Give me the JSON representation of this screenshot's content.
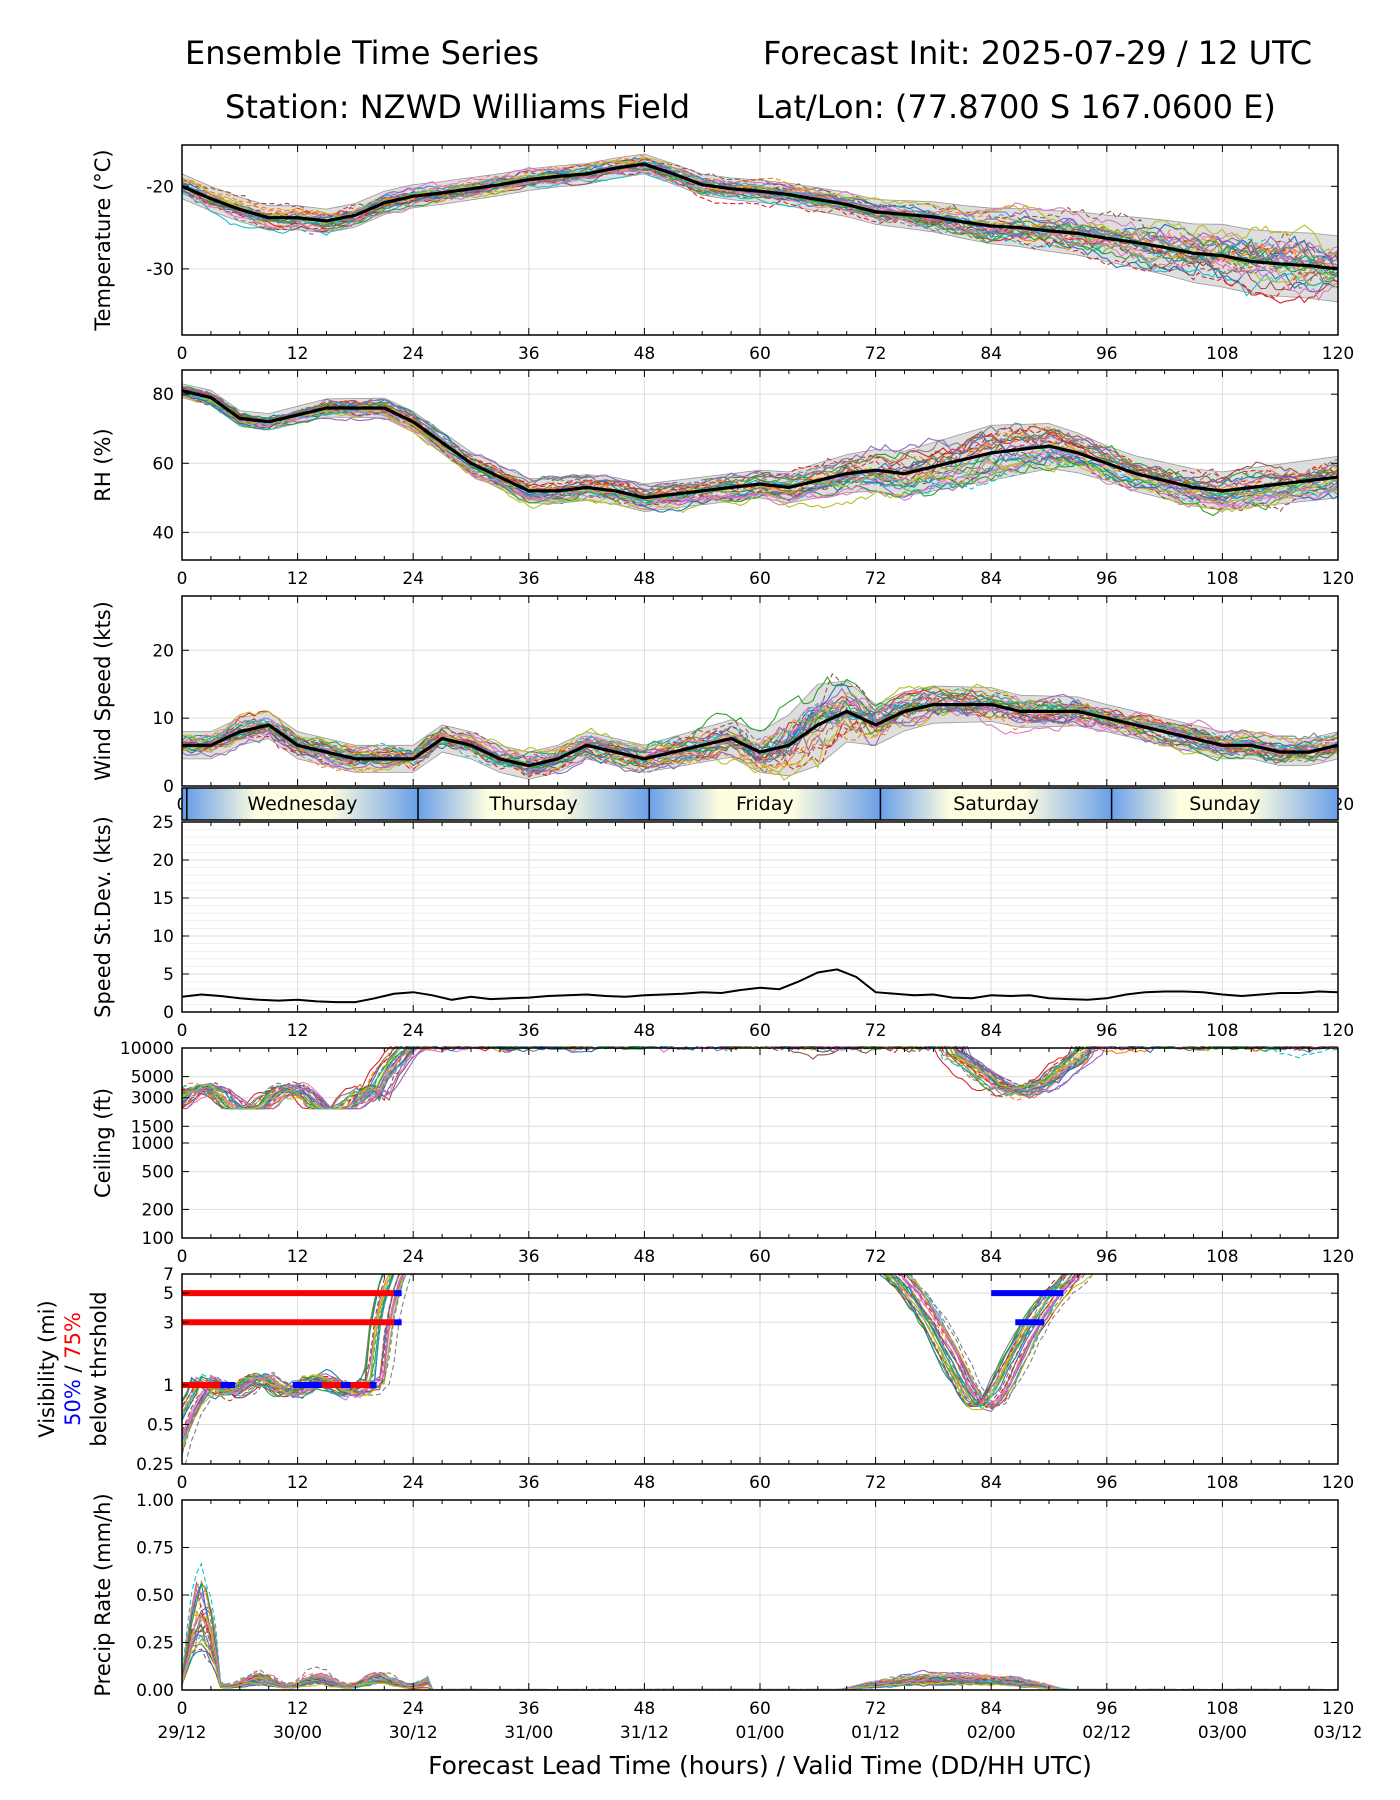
{
  "header": {
    "title": "Ensemble Time Series",
    "init": "Forecast Init: 2025-07-29 / 12 UTC",
    "station": "Station: NZWD Williams Field",
    "latlon": "Lat/Lon: (77.8700 S 167.0600 E)"
  },
  "xaxis": {
    "ticks": [
      0,
      12,
      24,
      36,
      48,
      60,
      72,
      84,
      96,
      108,
      120
    ],
    "valid_labels": [
      "29/12",
      "30/00",
      "30/12",
      "31/00",
      "31/12",
      "01/00",
      "01/12",
      "02/00",
      "02/12",
      "03/00",
      "03/12"
    ],
    "xlabel": "Forecast Lead Time (hours) / Valid Time (DD/HH UTC)",
    "range": [
      0,
      120
    ]
  },
  "day_strip": {
    "days": [
      {
        "label": "Wednesday",
        "start": 0.5,
        "end": 24.5
      },
      {
        "label": "Thursday",
        "start": 24.5,
        "end": 48.5
      },
      {
        "label": "Friday",
        "start": 48.5,
        "end": 72.5
      },
      {
        "label": "Saturday",
        "start": 72.5,
        "end": 96.5
      },
      {
        "label": "Sunday",
        "start": 96.5,
        "end": 120
      }
    ]
  },
  "visibility_legend": {
    "line1": "Visibility (mi)",
    "pct50": "50%",
    "sep": " / ",
    "pct75": "75%",
    "line3": "below thrshold",
    "color50": "#0000ff",
    "color75": "#ff0000"
  },
  "colors": {
    "ensemble": [
      "#1f77b4",
      "#ff7f0e",
      "#2ca02c",
      "#d62728",
      "#9467bd",
      "#8c564b",
      "#e377c2",
      "#7f7f7f",
      "#bcbd22",
      "#17becf"
    ],
    "mean": "#000000",
    "spread": "#d3d3d3",
    "day_light": "#fdfde0",
    "day_dark": "#6b9fe8"
  },
  "chart_data": [
    {
      "id": "temperature",
      "type": "line",
      "ylabel": "Temperature (°C)",
      "ylim": [
        -38,
        -15
      ],
      "yticks": [
        -20,
        -30
      ],
      "grid": true,
      "members": 30,
      "mean": {
        "x": [
          0,
          3,
          6,
          9,
          12,
          15,
          18,
          21,
          24,
          27,
          30,
          33,
          36,
          39,
          42,
          45,
          48,
          51,
          54,
          57,
          60,
          63,
          66,
          69,
          72,
          75,
          78,
          81,
          84,
          87,
          90,
          93,
          96,
          99,
          102,
          105,
          108,
          111,
          114,
          117,
          120
        ],
        "y": [
          -20.0,
          -21.5,
          -22.8,
          -23.8,
          -23.8,
          -24.2,
          -23.5,
          -22.0,
          -21.2,
          -20.8,
          -20.3,
          -19.8,
          -19.2,
          -18.8,
          -18.5,
          -17.8,
          -17.3,
          -18.5,
          -19.8,
          -20.3,
          -20.6,
          -21.0,
          -21.6,
          -22.2,
          -23.1,
          -23.4,
          -23.7,
          -24.3,
          -24.8,
          -25.0,
          -25.4,
          -25.7,
          -26.3,
          -26.8,
          -27.4,
          -28.1,
          -28.4,
          -29.1,
          -29.4,
          -29.6,
          -30.0
        ]
      },
      "band_width": {
        "x": [
          0,
          24,
          48,
          72,
          96,
          108,
          120
        ],
        "y": [
          1.5,
          1.4,
          1.2,
          1.5,
          2.8,
          3.8,
          4.0
        ]
      }
    },
    {
      "id": "rh",
      "type": "line",
      "ylabel": "RH (%)",
      "ylim": [
        32,
        87
      ],
      "yticks": [
        40,
        60,
        80
      ],
      "grid": true,
      "members": 30,
      "mean": {
        "x": [
          0,
          3,
          6,
          9,
          12,
          15,
          18,
          21,
          24,
          27,
          30,
          33,
          36,
          39,
          42,
          45,
          48,
          51,
          54,
          57,
          60,
          63,
          66,
          69,
          72,
          75,
          78,
          81,
          84,
          87,
          90,
          93,
          96,
          99,
          102,
          105,
          108,
          111,
          114,
          117,
          120
        ],
        "y": [
          81,
          79,
          73,
          72,
          74,
          76,
          76,
          76,
          72,
          66,
          60,
          56,
          52,
          52,
          53,
          52,
          50,
          51,
          52,
          53,
          54,
          53,
          55,
          57,
          58,
          57,
          59,
          61,
          63,
          64,
          65,
          63,
          60,
          57,
          55,
          53,
          52,
          53,
          54,
          55,
          56
        ]
      },
      "band_width": {
        "x": [
          0,
          24,
          48,
          60,
          72,
          84,
          96,
          120
        ],
        "y": [
          2,
          3,
          4,
          4,
          6,
          8,
          5,
          6
        ]
      }
    },
    {
      "id": "wind",
      "type": "line",
      "ylabel": "Wind Speed (kts)",
      "ylim": [
        0,
        28
      ],
      "yticks": [
        0,
        10,
        20
      ],
      "grid": true,
      "members": 30,
      "mean": {
        "x": [
          0,
          3,
          6,
          9,
          12,
          15,
          18,
          21,
          24,
          27,
          30,
          33,
          36,
          39,
          42,
          45,
          48,
          51,
          54,
          57,
          60,
          63,
          66,
          69,
          72,
          75,
          78,
          81,
          84,
          87,
          90,
          93,
          96,
          99,
          102,
          105,
          108,
          111,
          114,
          117,
          120
        ],
        "y": [
          6,
          6,
          8,
          9,
          6,
          5,
          4,
          4,
          4,
          7,
          6,
          4,
          3,
          4,
          6,
          5,
          4,
          5,
          6,
          7,
          5,
          6,
          9,
          11,
          9,
          11,
          12,
          12,
          12,
          11,
          11,
          11,
          10,
          9,
          8,
          7,
          6,
          6,
          5,
          5,
          6
        ]
      },
      "band_width": {
        "x": [
          0,
          24,
          48,
          60,
          66,
          72,
          96,
          120
        ],
        "y": [
          2,
          2,
          2,
          3,
          6,
          3,
          2,
          2
        ]
      }
    },
    {
      "id": "speed_stdev",
      "type": "line",
      "ylabel": "Speed St.Dev. (kts)",
      "ylim": [
        0,
        25
      ],
      "yticks": [
        0,
        5,
        10,
        15,
        20,
        25
      ],
      "grid": true,
      "series": [
        {
          "x": [
            0,
            2,
            4,
            6,
            8,
            10,
            12,
            14,
            16,
            18,
            20,
            22,
            24,
            26,
            28,
            30,
            32,
            34,
            36,
            38,
            40,
            42,
            44,
            46,
            48,
            50,
            52,
            54,
            56,
            58,
            60,
            62,
            64,
            66,
            68,
            70,
            72,
            74,
            76,
            78,
            80,
            82,
            84,
            86,
            88,
            90,
            92,
            94,
            96,
            98,
            100,
            102,
            104,
            106,
            108,
            110,
            112,
            114,
            116,
            118,
            120
          ],
          "y": [
            2.0,
            2.3,
            2.1,
            1.8,
            1.6,
            1.5,
            1.6,
            1.4,
            1.3,
            1.3,
            1.8,
            2.4,
            2.6,
            2.2,
            1.6,
            2.0,
            1.7,
            1.8,
            1.9,
            2.1,
            2.2,
            2.3,
            2.1,
            2.0,
            2.2,
            2.3,
            2.4,
            2.6,
            2.5,
            2.9,
            3.2,
            3.0,
            4.0,
            5.2,
            5.6,
            4.6,
            2.6,
            2.4,
            2.2,
            2.3,
            1.9,
            1.8,
            2.2,
            2.1,
            2.2,
            1.8,
            1.7,
            1.6,
            1.8,
            2.3,
            2.6,
            2.7,
            2.7,
            2.6,
            2.3,
            2.1,
            2.3,
            2.5,
            2.5,
            2.7,
            2.6
          ]
        }
      ]
    },
    {
      "id": "ceiling",
      "type": "line",
      "ylabel": "Ceiling (ft)",
      "scale": "log",
      "ylim": [
        100,
        10000
      ],
      "yticks": [
        100,
        200,
        500,
        1000,
        1500,
        3000,
        5000,
        10000
      ],
      "grid": true,
      "members": 30
    },
    {
      "id": "visibility",
      "type": "line",
      "scale": "log",
      "ylim": [
        0.25,
        7
      ],
      "yticks": [
        0.25,
        0.5,
        1,
        3,
        5,
        7
      ],
      "grid": true,
      "members": 30,
      "threshold_bars": [
        {
          "level": 5,
          "pct": 75,
          "x0": 0,
          "x1": 22
        },
        {
          "level": 5,
          "pct": 50,
          "x0": 22,
          "x1": 22.8
        },
        {
          "level": 3,
          "pct": 75,
          "x0": 0,
          "x1": 22
        },
        {
          "level": 3,
          "pct": 50,
          "x0": 22,
          "x1": 22.8
        },
        {
          "level": 1,
          "pct": 75,
          "x0": 0,
          "x1": 5.5
        },
        {
          "level": 1,
          "pct": 50,
          "x0": 4,
          "x1": 5.5
        },
        {
          "level": 1,
          "pct": 75,
          "x0": 11.5,
          "x1": 20
        },
        {
          "level": 1,
          "pct": 50,
          "x0": 11.5,
          "x1": 14.5
        },
        {
          "level": 1,
          "pct": 50,
          "x0": 16.5,
          "x1": 17.5
        },
        {
          "level": 1,
          "pct": 50,
          "x0": 19.5,
          "x1": 20.2
        },
        {
          "level": 5,
          "pct": 50,
          "x0": 84,
          "x1": 91.5
        },
        {
          "level": 3,
          "pct": 50,
          "x0": 86.5,
          "x1": 89.5
        }
      ]
    },
    {
      "id": "precip",
      "type": "line",
      "ylabel": "Precip Rate (mm/h)",
      "ylim": [
        0,
        1
      ],
      "yticks": [
        0.0,
        0.25,
        0.5,
        0.75,
        1.0
      ],
      "grid": true,
      "members": 30
    }
  ]
}
